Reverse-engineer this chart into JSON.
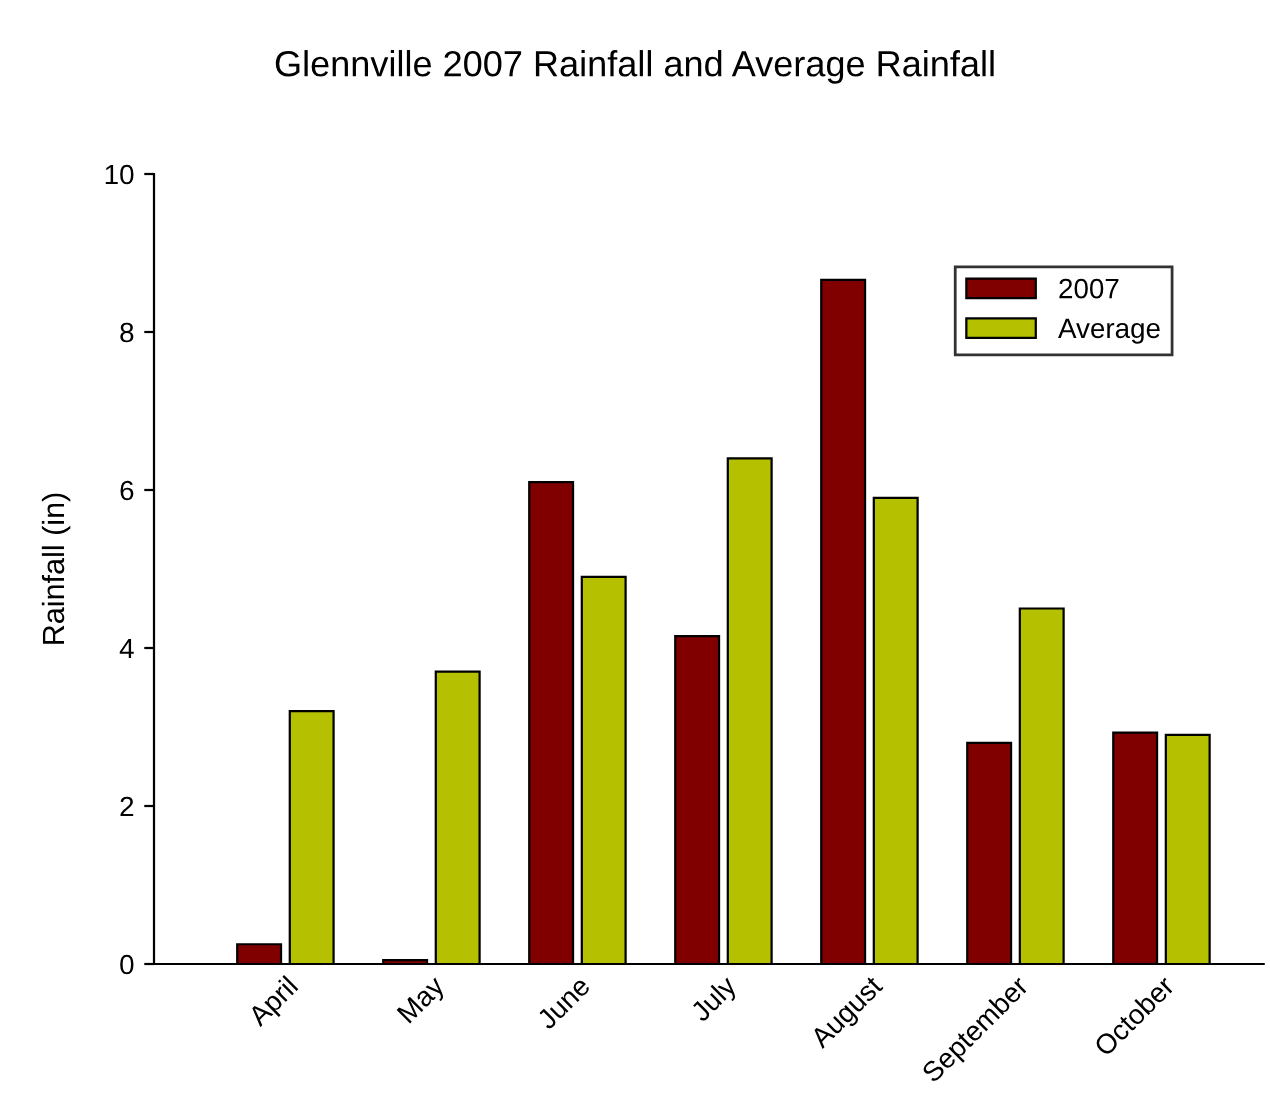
{
  "chart_data": {
    "type": "bar",
    "title": "Glennville 2007 Rainfall and Average Rainfall",
    "ylabel": "Rainfall (in)",
    "categories": [
      "April",
      "May",
      "June",
      "July",
      "August",
      "September",
      "October"
    ],
    "series": [
      {
        "name": "2007",
        "color": "#800000",
        "values": [
          0.25,
          0.05,
          6.1,
          4.15,
          8.66,
          2.8,
          2.93
        ]
      },
      {
        "name": "Average",
        "color": "#b5c000",
        "values": [
          3.2,
          3.7,
          4.9,
          6.4,
          5.9,
          4.5,
          2.9
        ]
      }
    ],
    "ylim": [
      0,
      10
    ],
    "yticks": [
      0,
      2,
      4,
      6,
      8,
      10
    ],
    "grid": false,
    "legend": "top right"
  }
}
